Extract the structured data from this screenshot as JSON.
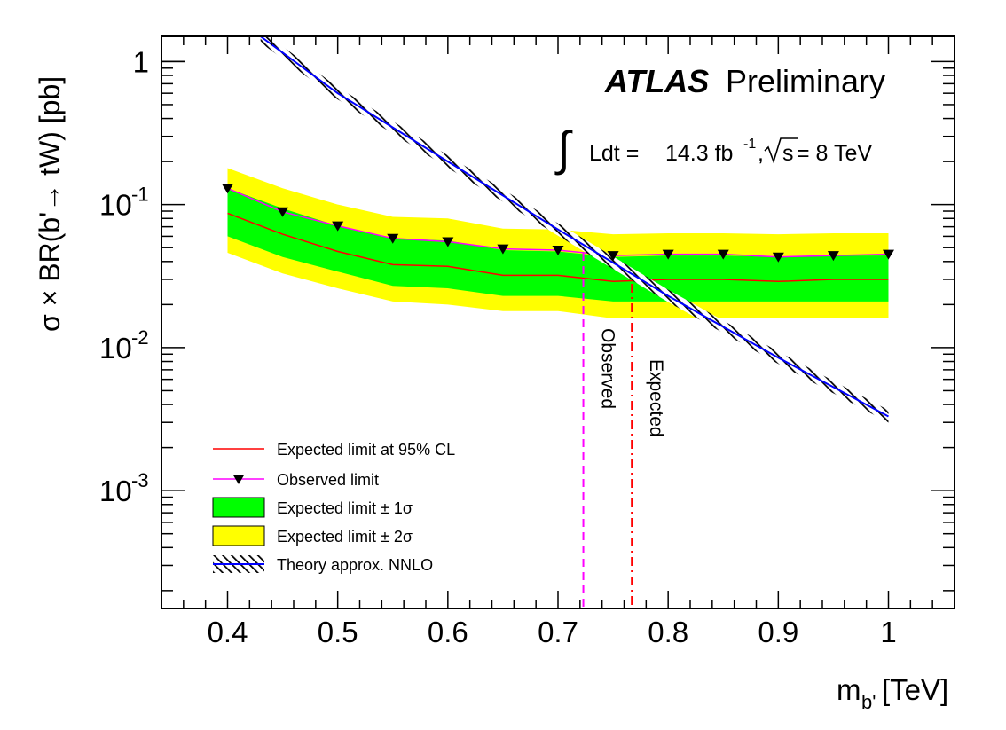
{
  "chart_data": {
    "type": "line",
    "title": "",
    "annotation": {
      "experiment": "ATLAS",
      "status": "Preliminary",
      "lumi_prefix": "Ldt = ",
      "lumi_value": "14.3 fb",
      "lumi_exp": "-1",
      "sqrt_s_sep": ",",
      "sqrt_s_sym": "s",
      "sqrt_s_value": " = 8 TeV"
    },
    "xlabel": "m",
    "xlabel_sub": "b'",
    "xlabel_unit": "[TeV]",
    "ylabel": "σ × BR(b'→ tW) [pb]",
    "xlim": [
      0.34,
      1.06
    ],
    "ylim": [
      0.00015,
      1.5
    ],
    "yscale": "log",
    "grid": false,
    "x_ticks": [
      "0.4",
      "0.5",
      "0.6",
      "0.7",
      "0.8",
      "0.9",
      "1"
    ],
    "x_tick_values": [
      0.4,
      0.5,
      0.6,
      0.7,
      0.8,
      0.9,
      1.0
    ],
    "y_ticks": [
      {
        "value": 1,
        "base": "1",
        "exp": ""
      },
      {
        "value": 0.1,
        "base": "10",
        "exp": "-1"
      },
      {
        "value": 0.01,
        "base": "10",
        "exp": "-2"
      },
      {
        "value": 0.001,
        "base": "10",
        "exp": "-3"
      }
    ],
    "x": [
      0.4,
      0.45,
      0.5,
      0.55,
      0.6,
      0.65,
      0.7,
      0.75,
      0.8,
      0.85,
      0.9,
      0.95,
      1.0
    ],
    "series": [
      {
        "name": "Expected limit at 95% CL",
        "color": "#ff0000",
        "values": [
          0.087,
          0.062,
          0.047,
          0.038,
          0.037,
          0.032,
          0.032,
          0.029,
          0.03,
          0.03,
          0.029,
          0.03,
          0.03
        ]
      },
      {
        "name": "Observed limit",
        "color": "#ff00ff",
        "marker": "inverted-triangle",
        "values": [
          0.13,
          0.089,
          0.071,
          0.058,
          0.055,
          0.049,
          0.048,
          0.044,
          0.045,
          0.045,
          0.043,
          0.044,
          0.045
        ]
      },
      {
        "name": "Expected limit ± 1σ",
        "color": "#00ff00",
        "lower": [
          0.06,
          0.043,
          0.034,
          0.027,
          0.026,
          0.023,
          0.023,
          0.021,
          0.021,
          0.021,
          0.021,
          0.021,
          0.021
        ],
        "upper": [
          0.13,
          0.094,
          0.071,
          0.058,
          0.056,
          0.048,
          0.047,
          0.043,
          0.044,
          0.044,
          0.043,
          0.044,
          0.044
        ]
      },
      {
        "name": "Expected limit ± 2σ",
        "color": "#ffff00",
        "lower": [
          0.046,
          0.033,
          0.026,
          0.021,
          0.02,
          0.018,
          0.018,
          0.016,
          0.016,
          0.016,
          0.016,
          0.016,
          0.016
        ],
        "upper": [
          0.18,
          0.13,
          0.1,
          0.082,
          0.08,
          0.068,
          0.067,
          0.062,
          0.063,
          0.063,
          0.062,
          0.063,
          0.063
        ]
      },
      {
        "name": "Theory approx. NNLO",
        "color": "#0000ff",
        "x": [
          0.43,
          0.5,
          0.6,
          0.7,
          0.8,
          0.9,
          1.0
        ],
        "values": [
          1.5,
          0.6,
          0.2,
          0.067,
          0.023,
          0.0085,
          0.0033
        ]
      }
    ],
    "vertical_lines": [
      {
        "label": "Observed",
        "x": 0.723,
        "color": "#ff00ff",
        "style": "dashed"
      },
      {
        "label": "Expected",
        "x": 0.767,
        "color": "#ff0000",
        "style": "dash-dot"
      }
    ],
    "legend_placement": "bottom-left"
  }
}
